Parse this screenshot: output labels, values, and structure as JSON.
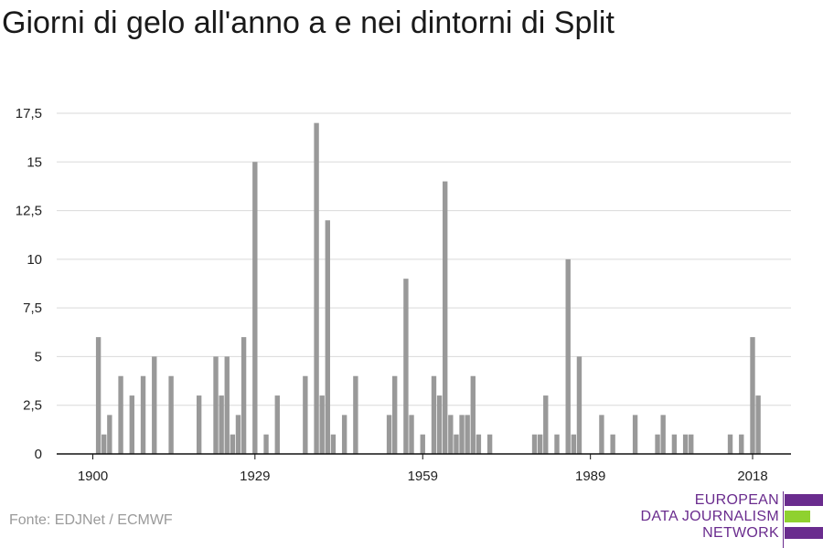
{
  "title": "Giorni di gelo all'anno a e nei dintorni di Split",
  "source": "Fonte: EDJNet / ECMWF",
  "logo": {
    "lines": [
      "EUROPEAN",
      "DATA JOURNALISM",
      "NETWORK"
    ],
    "colors": [
      "#6a2c8e",
      "#8fd12f",
      "#6a2c8e"
    ]
  },
  "colors": {
    "bar": "#999999",
    "grid": "#d9d9d9",
    "axis": "#111111"
  },
  "chart_data": {
    "type": "bar",
    "title": "Giorni di gelo all'anno a e nei dintorni di Split",
    "xlabel": "",
    "ylabel": "",
    "ylim": [
      0,
      17.5
    ],
    "grid": true,
    "yticks": [
      0,
      2.5,
      5,
      7.5,
      10,
      12.5,
      15,
      17.5
    ],
    "ytick_labels": [
      "0",
      "2,5",
      "5",
      "7,5",
      "10",
      "12,5",
      "15",
      "17,5"
    ],
    "xtick_labels": [
      "1900",
      "1929",
      "1959",
      "1989",
      "2018"
    ],
    "x": [
      1900,
      1901,
      1902,
      1903,
      1904,
      1905,
      1906,
      1907,
      1908,
      1909,
      1910,
      1911,
      1912,
      1913,
      1914,
      1915,
      1916,
      1917,
      1918,
      1919,
      1920,
      1921,
      1922,
      1923,
      1924,
      1925,
      1926,
      1927,
      1928,
      1929,
      1930,
      1931,
      1932,
      1933,
      1934,
      1935,
      1936,
      1937,
      1938,
      1939,
      1940,
      1941,
      1942,
      1943,
      1944,
      1945,
      1946,
      1947,
      1948,
      1949,
      1950,
      1951,
      1952,
      1953,
      1954,
      1955,
      1956,
      1957,
      1958,
      1959,
      1960,
      1961,
      1962,
      1963,
      1964,
      1965,
      1966,
      1967,
      1968,
      1969,
      1970,
      1971,
      1972,
      1973,
      1974,
      1975,
      1976,
      1977,
      1978,
      1979,
      1980,
      1981,
      1982,
      1983,
      1984,
      1985,
      1986,
      1987,
      1988,
      1989,
      1990,
      1991,
      1992,
      1993,
      1994,
      1995,
      1996,
      1997,
      1998,
      1999,
      2000,
      2001,
      2002,
      2003,
      2004,
      2005,
      2006,
      2007,
      2008,
      2009,
      2010,
      2011,
      2012,
      2013,
      2014,
      2015,
      2016,
      2017,
      2018,
      2019
    ],
    "values": [
      0,
      6,
      1,
      2,
      0,
      4,
      0,
      3,
      0,
      4,
      0,
      5,
      0,
      0,
      4,
      0,
      0,
      0,
      0,
      3,
      0,
      0,
      5,
      3,
      5,
      1,
      2,
      6,
      0,
      15,
      0,
      1,
      0,
      3,
      0,
      0,
      0,
      0,
      4,
      0,
      17,
      3,
      12,
      1,
      0,
      2,
      0,
      4,
      0,
      0,
      0,
      0,
      0,
      2,
      4,
      0,
      9,
      2,
      0,
      1,
      0,
      4,
      3,
      14,
      2,
      1,
      2,
      2,
      4,
      1,
      0,
      1,
      0,
      0,
      0,
      0,
      0,
      0,
      0,
      1,
      1,
      3,
      0,
      1,
      0,
      10,
      1,
      5,
      0,
      0,
      0,
      2,
      0,
      1,
      0,
      0,
      0,
      2,
      0,
      0,
      0,
      1,
      2,
      0,
      1,
      0,
      1,
      1,
      0,
      0,
      0,
      0,
      0,
      0,
      1,
      0,
      1,
      0,
      6,
      3
    ]
  }
}
